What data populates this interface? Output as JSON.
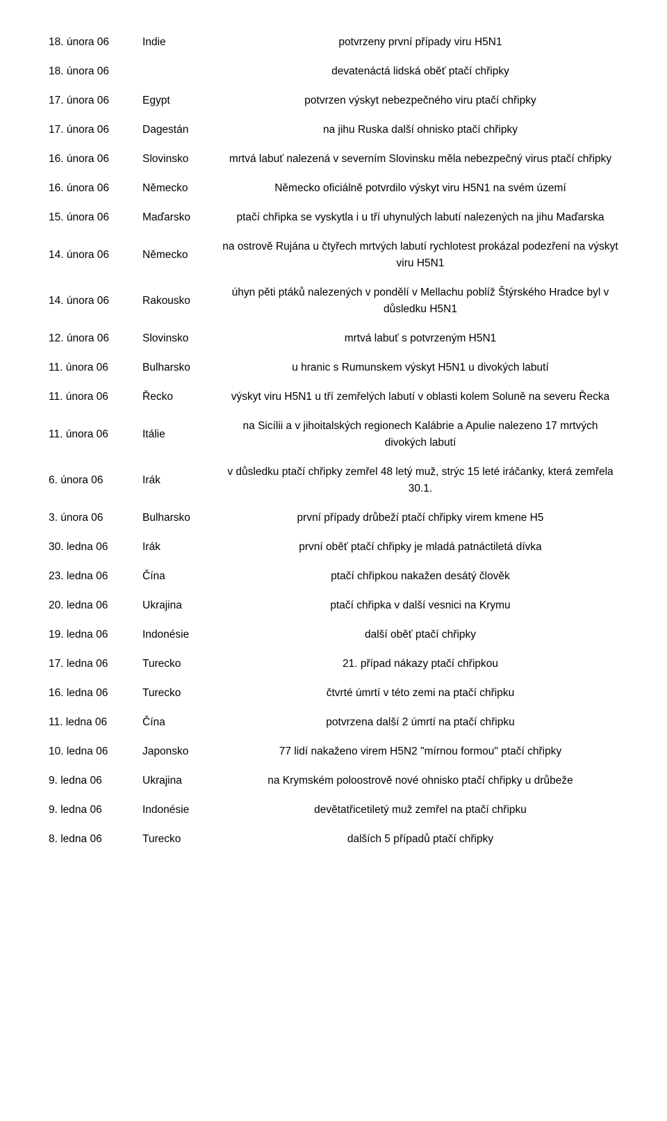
{
  "rows": [
    {
      "date": "18. února 06",
      "country": "Indie",
      "desc": "potvrzeny první případy viru H5N1"
    },
    {
      "date": "18. února 06",
      "country": "",
      "desc": "devatenáctá lidská oběť ptačí chřipky"
    },
    {
      "date": "17. února 06",
      "country": "Egypt",
      "desc": "potvrzen výskyt nebezpečného viru ptačí chřipky"
    },
    {
      "date": "17. února 06",
      "country": "Dagestán",
      "desc": "na jihu Ruska další ohnisko ptačí chřipky"
    },
    {
      "date": "16. února 06",
      "country": "Slovinsko",
      "desc": "mrtvá labuť nalezená v severním Slovinsku měla nebezpečný virus ptačí chřipky"
    },
    {
      "date": "16. února 06",
      "country": "Německo",
      "desc": "Německo oficiálně potvrdilo výskyt viru H5N1 na svém území"
    },
    {
      "date": "15. února 06",
      "country": "Maďarsko",
      "desc": "ptačí chřipka se vyskytla i u tří uhynulých labutí nalezených na jihu Maďarska"
    },
    {
      "date": "14. února 06",
      "country": "Německo",
      "desc": "na ostrově Rujána u čtyřech mrtvých labutí rychlotest prokázal podezření na výskyt viru H5N1"
    },
    {
      "date": "14. února 06",
      "country": "Rakousko",
      "desc": "úhyn pěti ptáků nalezených v pondělí v Mellachu poblíž Štýrského Hradce byl v důsledku H5N1"
    },
    {
      "date": "12. února 06",
      "country": "Slovinsko",
      "desc": "mrtvá labuť s potvrzeným H5N1"
    },
    {
      "date": "11. února 06",
      "country": "Bulharsko",
      "desc": "u hranic s Rumunskem výskyt H5N1 u divokých labutí"
    },
    {
      "date": "11. února 06",
      "country": "Řecko",
      "desc": "výskyt viru H5N1 u tří zemřelých labutí v oblasti kolem Soluně na severu Řecka"
    },
    {
      "date": "11. února 06",
      "country": "Itálie",
      "desc": "na Sicílii a v jihoitalských regionech Kalábrie a Apulie nalezeno 17 mrtvých divokých labutí"
    },
    {
      "date": "6. února 06",
      "country": "Irák",
      "desc": "v důsledku ptačí chřipky zemřel 48 letý muž, strýc 15 leté iráčanky, která zemřela 30.1."
    },
    {
      "date": "3. února 06",
      "country": "Bulharsko",
      "desc": "první případy drůbeží ptačí chřipky virem kmene H5"
    },
    {
      "date": "30. ledna 06",
      "country": "Irák",
      "desc": "první oběť ptačí chřipky je mladá patnáctiletá dívka"
    },
    {
      "date": "23. ledna 06",
      "country": "Čína",
      "desc": "ptačí chřipkou nakažen desátý člověk"
    },
    {
      "date": "20. ledna 06",
      "country": "Ukrajina",
      "desc": "ptačí chřipka v další vesnici na Krymu"
    },
    {
      "date": "19. ledna 06",
      "country": "Indonésie",
      "desc": "další oběť ptačí chřipky"
    },
    {
      "date": "17. ledna 06",
      "country": "Turecko",
      "desc": "21. případ nákazy ptačí chřipkou"
    },
    {
      "date": "16. ledna 06",
      "country": "Turecko",
      "desc": "čtvrté úmrtí v této zemi na ptačí chřipku"
    },
    {
      "date": "11. ledna 06",
      "country": "Čína",
      "desc": "potvrzena další 2 úmrtí na ptačí chřipku"
    },
    {
      "date": "10. ledna 06",
      "country": "Japonsko",
      "desc": "77 lidí nakaženo virem H5N2 \"mírnou formou\" ptačí chřipky"
    },
    {
      "date": "9. ledna 06",
      "country": "Ukrajina",
      "desc": "na Krymském poloostrově nové ohnisko ptačí chřipky u drůbeže"
    },
    {
      "date": "9. ledna 06",
      "country": "Indonésie",
      "desc": "devětatřicetiletý muž zemřel na ptačí chřipku"
    },
    {
      "date": "8. ledna 06",
      "country": "Turecko",
      "desc": "dalších 5 případů ptačí chřipky"
    }
  ]
}
